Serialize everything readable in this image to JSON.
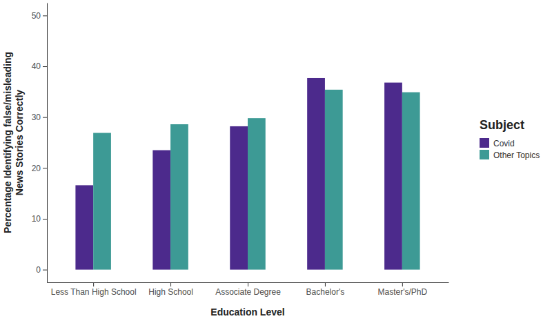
{
  "chart_data": {
    "type": "bar",
    "x_label": "Education Level",
    "y_label": "Percentage Identifying false/misleading\nNews Stories Correctly",
    "legend_title": "Subject",
    "categories": [
      "Less Than High School",
      "High School",
      "Associate Degree",
      "Bachelor's",
      "Master's/PhD"
    ],
    "series": [
      {
        "name": "Covid",
        "color": "#4c2a8c",
        "values": [
          16.6,
          23.5,
          28.2,
          37.7,
          36.8
        ]
      },
      {
        "name": "Other Topics",
        "color": "#3d9a95",
        "values": [
          26.9,
          28.6,
          29.8,
          35.4,
          34.9
        ]
      }
    ],
    "ylim": [
      -2.5,
      52.5
    ],
    "yticks": [
      0,
      10,
      20,
      30,
      40,
      50
    ],
    "grid": false,
    "legend": "right"
  }
}
